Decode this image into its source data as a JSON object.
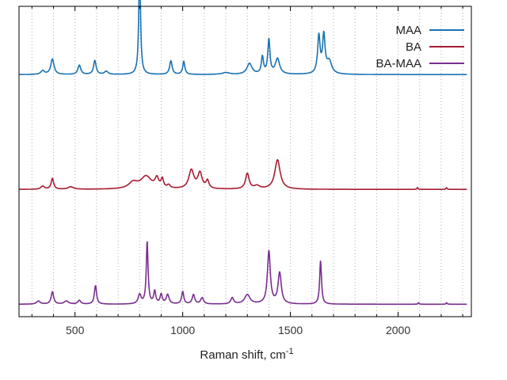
{
  "chart_data": {
    "type": "line",
    "xlabel": "Raman shift, cm",
    "xlabel_sup": "-1",
    "xlim": [
      240,
      2340
    ],
    "xticks": [
      500,
      1000,
      1500,
      2000
    ],
    "xtick_labels": [
      "500",
      "1000",
      "1500",
      "2000"
    ],
    "ylim": [
      0,
      1
    ],
    "yticks_shown": false,
    "grid": "vertical dotted",
    "legend": "top-right",
    "series": [
      {
        "name": "MAA",
        "color": "#1a72b4",
        "baseline": 0.78,
        "peaks": [
          [
            350,
            0.012,
            10
          ],
          [
            395,
            0.05,
            9
          ],
          [
            520,
            0.03,
            8
          ],
          [
            592,
            0.045,
            7
          ],
          [
            645,
            0.01,
            10
          ],
          [
            800,
            0.34,
            5
          ],
          [
            945,
            0.044,
            7
          ],
          [
            1005,
            0.042,
            6
          ],
          [
            1200,
            0.006,
            20
          ],
          [
            1310,
            0.035,
            14
          ],
          [
            1370,
            0.055,
            6
          ],
          [
            1400,
            0.11,
            6
          ],
          [
            1440,
            0.05,
            12
          ],
          [
            1632,
            0.12,
            7
          ],
          [
            1655,
            0.12,
            7
          ],
          [
            1680,
            0.04,
            14
          ]
        ]
      },
      {
        "name": "BA",
        "color": "#a71d31",
        "baseline": 0.41,
        "peaks": [
          [
            350,
            0.01,
            10
          ],
          [
            395,
            0.035,
            7
          ],
          [
            480,
            0.008,
            15
          ],
          [
            770,
            0.02,
            25
          ],
          [
            830,
            0.04,
            30
          ],
          [
            880,
            0.03,
            10
          ],
          [
            905,
            0.028,
            7
          ],
          [
            935,
            0.01,
            8
          ],
          [
            1040,
            0.06,
            14
          ],
          [
            1080,
            0.05,
            12
          ],
          [
            1115,
            0.025,
            8
          ],
          [
            1300,
            0.05,
            10
          ],
          [
            1345,
            0.01,
            15
          ],
          [
            1440,
            0.095,
            15
          ],
          [
            2090,
            0.006,
            3
          ],
          [
            2225,
            0.006,
            3
          ]
        ]
      },
      {
        "name": "BA-MAA",
        "color": "#7a2e8e",
        "baseline": 0.04,
        "peaks": [
          [
            330,
            0.01,
            10
          ],
          [
            395,
            0.04,
            7
          ],
          [
            460,
            0.01,
            12
          ],
          [
            520,
            0.012,
            8
          ],
          [
            595,
            0.06,
            6
          ],
          [
            800,
            0.03,
            8
          ],
          [
            835,
            0.2,
            5
          ],
          [
            870,
            0.04,
            6
          ],
          [
            900,
            0.03,
            6
          ],
          [
            930,
            0.03,
            8
          ],
          [
            1000,
            0.04,
            6
          ],
          [
            1050,
            0.03,
            7
          ],
          [
            1090,
            0.02,
            8
          ],
          [
            1230,
            0.02,
            8
          ],
          [
            1300,
            0.03,
            15
          ],
          [
            1400,
            0.17,
            8
          ],
          [
            1450,
            0.1,
            9
          ],
          [
            1640,
            0.14,
            5
          ],
          [
            2095,
            0.005,
            3
          ],
          [
            2225,
            0.005,
            3
          ]
        ]
      }
    ]
  }
}
